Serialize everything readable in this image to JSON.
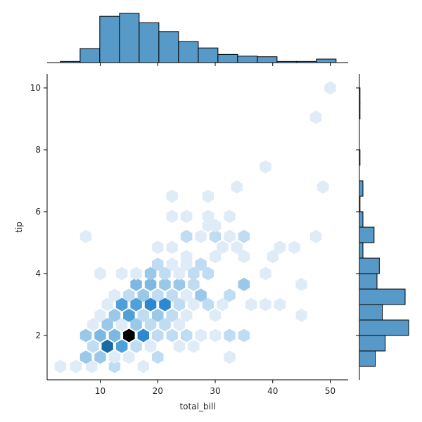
{
  "chart_data": {
    "type": "hexbin-jointplot",
    "title": "",
    "xlabel": "total_bill",
    "ylabel": "tip",
    "xlim": [
      0.7,
      53.3
    ],
    "ylim": [
      0.6,
      10.45
    ],
    "xticks": [
      10,
      20,
      30,
      40,
      50
    ],
    "yticks": [
      2,
      4,
      6,
      8,
      10
    ],
    "grid": false,
    "colormap": "Blues (light to dark, black for max)",
    "bar_color": "#5799c7",
    "bar_edge_color": "#000000",
    "marginal_x": {
      "type": "bar",
      "bin_edges": [
        3.07,
        6.5,
        9.92,
        13.35,
        16.77,
        20.2,
        23.62,
        27.05,
        30.47,
        33.9,
        37.32,
        40.75,
        44.17,
        47.6,
        51.02
      ],
      "counts": [
        2,
        24,
        79,
        84,
        68,
        53,
        36,
        25,
        14,
        11,
        10,
        2,
        2,
        6
      ]
    },
    "marginal_y": {
      "type": "bar",
      "bin_edges": [
        1.0,
        1.5,
        2.0,
        2.5,
        3.0,
        3.5,
        4.0,
        4.5,
        5.0,
        5.5,
        6.0,
        6.5,
        7.0,
        7.5,
        8.0,
        8.5,
        9.0,
        9.5,
        10.0
      ],
      "counts": [
        27,
        44,
        84,
        39,
        78,
        30,
        34,
        6,
        25,
        6,
        1,
        6,
        0,
        1,
        0,
        0,
        1,
        1
      ]
    },
    "hexbins": [
      {
        "x": 3.07,
        "y": 1.0,
        "level": 1
      },
      {
        "x": 5.75,
        "y": 1.0,
        "level": 1
      },
      {
        "x": 8.5,
        "y": 1.0,
        "level": 1
      },
      {
        "x": 12.5,
        "y": 1.0,
        "level": 2
      },
      {
        "x": 17.5,
        "y": 1.0,
        "level": 1
      },
      {
        "x": 7.5,
        "y": 1.3,
        "level": 3
      },
      {
        "x": 10.0,
        "y": 1.3,
        "level": 3
      },
      {
        "x": 12.5,
        "y": 1.3,
        "level": 1
      },
      {
        "x": 15.0,
        "y": 1.3,
        "level": 1
      },
      {
        "x": 20.0,
        "y": 1.3,
        "level": 2
      },
      {
        "x": 32.5,
        "y": 1.3,
        "level": 1
      },
      {
        "x": 8.75,
        "y": 1.65,
        "level": 2
      },
      {
        "x": 11.25,
        "y": 1.65,
        "level": 7
      },
      {
        "x": 13.75,
        "y": 1.65,
        "level": 5
      },
      {
        "x": 16.25,
        "y": 1.65,
        "level": 2
      },
      {
        "x": 18.75,
        "y": 1.65,
        "level": 1
      },
      {
        "x": 23.75,
        "y": 1.65,
        "level": 1
      },
      {
        "x": 26.25,
        "y": 1.65,
        "level": 1
      },
      {
        "x": 7.5,
        "y": 2.0,
        "level": 3
      },
      {
        "x": 10.0,
        "y": 2.0,
        "level": 4
      },
      {
        "x": 12.5,
        "y": 2.0,
        "level": 4
      },
      {
        "x": 15.0,
        "y": 2.0,
        "level": 8
      },
      {
        "x": 17.5,
        "y": 2.0,
        "level": 6
      },
      {
        "x": 20.0,
        "y": 2.0,
        "level": 2
      },
      {
        "x": 22.5,
        "y": 2.0,
        "level": 2
      },
      {
        "x": 25.0,
        "y": 2.0,
        "level": 2
      },
      {
        "x": 27.5,
        "y": 2.0,
        "level": 1
      },
      {
        "x": 30.0,
        "y": 2.0,
        "level": 1
      },
      {
        "x": 32.5,
        "y": 2.0,
        "level": 2
      },
      {
        "x": 35.0,
        "y": 2.0,
        "level": 2
      },
      {
        "x": 8.75,
        "y": 2.35,
        "level": 1
      },
      {
        "x": 11.25,
        "y": 2.35,
        "level": 3
      },
      {
        "x": 13.75,
        "y": 2.35,
        "level": 1
      },
      {
        "x": 16.25,
        "y": 2.35,
        "level": 3
      },
      {
        "x": 18.75,
        "y": 2.35,
        "level": 2
      },
      {
        "x": 21.25,
        "y": 2.35,
        "level": 2
      },
      {
        "x": 23.75,
        "y": 2.35,
        "level": 1
      },
      {
        "x": 10.0,
        "y": 2.65,
        "level": 1
      },
      {
        "x": 12.5,
        "y": 2.65,
        "level": 3
      },
      {
        "x": 15.0,
        "y": 2.65,
        "level": 5
      },
      {
        "x": 17.5,
        "y": 2.65,
        "level": 2
      },
      {
        "x": 20.0,
        "y": 2.65,
        "level": 3
      },
      {
        "x": 22.5,
        "y": 2.65,
        "level": 2
      },
      {
        "x": 25.0,
        "y": 2.65,
        "level": 1
      },
      {
        "x": 30.0,
        "y": 2.65,
        "level": 1
      },
      {
        "x": 45.0,
        "y": 2.65,
        "level": 1
      },
      {
        "x": 11.25,
        "y": 3.0,
        "level": 1
      },
      {
        "x": 13.75,
        "y": 3.0,
        "level": 5
      },
      {
        "x": 16.25,
        "y": 3.0,
        "level": 5
      },
      {
        "x": 18.75,
        "y": 3.0,
        "level": 6
      },
      {
        "x": 21.25,
        "y": 3.0,
        "level": 6
      },
      {
        "x": 23.75,
        "y": 3.0,
        "level": 2
      },
      {
        "x": 26.25,
        "y": 3.0,
        "level": 1
      },
      {
        "x": 28.75,
        "y": 3.0,
        "level": 2
      },
      {
        "x": 31.25,
        "y": 3.0,
        "level": 1
      },
      {
        "x": 36.25,
        "y": 3.0,
        "level": 1
      },
      {
        "x": 38.75,
        "y": 3.0,
        "level": 1
      },
      {
        "x": 41.25,
        "y": 3.0,
        "level": 1
      },
      {
        "x": 12.5,
        "y": 3.3,
        "level": 1
      },
      {
        "x": 15.0,
        "y": 3.3,
        "level": 2
      },
      {
        "x": 17.5,
        "y": 3.3,
        "level": 3
      },
      {
        "x": 20.0,
        "y": 3.3,
        "level": 2
      },
      {
        "x": 22.5,
        "y": 3.3,
        "level": 2
      },
      {
        "x": 25.0,
        "y": 3.3,
        "level": 1
      },
      {
        "x": 27.5,
        "y": 3.3,
        "level": 3
      },
      {
        "x": 32.5,
        "y": 3.3,
        "level": 2
      },
      {
        "x": 16.25,
        "y": 3.65,
        "level": 4
      },
      {
        "x": 18.75,
        "y": 3.65,
        "level": 4
      },
      {
        "x": 21.25,
        "y": 3.65,
        "level": 3
      },
      {
        "x": 23.75,
        "y": 3.65,
        "level": 3
      },
      {
        "x": 26.25,
        "y": 3.65,
        "level": 2
      },
      {
        "x": 35.0,
        "y": 3.65,
        "level": 3
      },
      {
        "x": 45.0,
        "y": 3.65,
        "level": 1
      },
      {
        "x": 10.0,
        "y": 4.0,
        "level": 1
      },
      {
        "x": 13.75,
        "y": 4.0,
        "level": 1
      },
      {
        "x": 16.25,
        "y": 4.0,
        "level": 1
      },
      {
        "x": 18.75,
        "y": 4.0,
        "level": 3
      },
      {
        "x": 21.25,
        "y": 4.0,
        "level": 2
      },
      {
        "x": 23.75,
        "y": 4.0,
        "level": 1
      },
      {
        "x": 26.25,
        "y": 4.0,
        "level": 2
      },
      {
        "x": 28.75,
        "y": 4.0,
        "level": 2
      },
      {
        "x": 38.75,
        "y": 4.0,
        "level": 1
      },
      {
        "x": 20.0,
        "y": 4.3,
        "level": 2
      },
      {
        "x": 22.5,
        "y": 4.3,
        "level": 1
      },
      {
        "x": 27.5,
        "y": 4.3,
        "level": 2
      },
      {
        "x": 25.0,
        "y": 4.3,
        "level": 1
      },
      {
        "x": 30.0,
        "y": 4.55,
        "level": 1
      },
      {
        "x": 35.0,
        "y": 4.55,
        "level": 1
      },
      {
        "x": 40.0,
        "y": 4.55,
        "level": 1
      },
      {
        "x": 25.0,
        "y": 4.55,
        "level": 1
      },
      {
        "x": 20.0,
        "y": 4.85,
        "level": 1
      },
      {
        "x": 22.5,
        "y": 4.85,
        "level": 1
      },
      {
        "x": 31.25,
        "y": 4.85,
        "level": 1
      },
      {
        "x": 33.75,
        "y": 4.85,
        "level": 1
      },
      {
        "x": 41.25,
        "y": 4.85,
        "level": 1
      },
      {
        "x": 43.75,
        "y": 4.85,
        "level": 1
      },
      {
        "x": 7.5,
        "y": 5.2,
        "level": 1
      },
      {
        "x": 25.0,
        "y": 5.2,
        "level": 2
      },
      {
        "x": 27.5,
        "y": 5.2,
        "level": 1
      },
      {
        "x": 30.0,
        "y": 5.2,
        "level": 2
      },
      {
        "x": 32.5,
        "y": 5.2,
        "level": 1
      },
      {
        "x": 35.0,
        "y": 5.2,
        "level": 2
      },
      {
        "x": 47.5,
        "y": 5.2,
        "level": 1
      },
      {
        "x": 28.75,
        "y": 5.55,
        "level": 1
      },
      {
        "x": 30.0,
        "y": 5.55,
        "level": 1
      },
      {
        "x": 22.5,
        "y": 5.85,
        "level": 1
      },
      {
        "x": 25.0,
        "y": 5.85,
        "level": 1
      },
      {
        "x": 28.75,
        "y": 5.85,
        "level": 1
      },
      {
        "x": 32.5,
        "y": 5.85,
        "level": 1
      },
      {
        "x": 22.5,
        "y": 6.5,
        "level": 1
      },
      {
        "x": 28.75,
        "y": 6.5,
        "level": 1
      },
      {
        "x": 33.75,
        "y": 6.8,
        "level": 1
      },
      {
        "x": 48.75,
        "y": 6.8,
        "level": 1
      },
      {
        "x": 38.75,
        "y": 7.45,
        "level": 1
      },
      {
        "x": 47.5,
        "y": 9.05,
        "level": 1
      },
      {
        "x": 50.0,
        "y": 10.0,
        "level": 1
      }
    ],
    "level_colors": {
      "1": "#dfecf8",
      "2": "#c0dcf2",
      "3": "#9ac8e9",
      "4": "#7db8e2",
      "5": "#4f9fd9",
      "6": "#2e88cf",
      "7": "#1a6aa6",
      "8": "#000000"
    }
  }
}
